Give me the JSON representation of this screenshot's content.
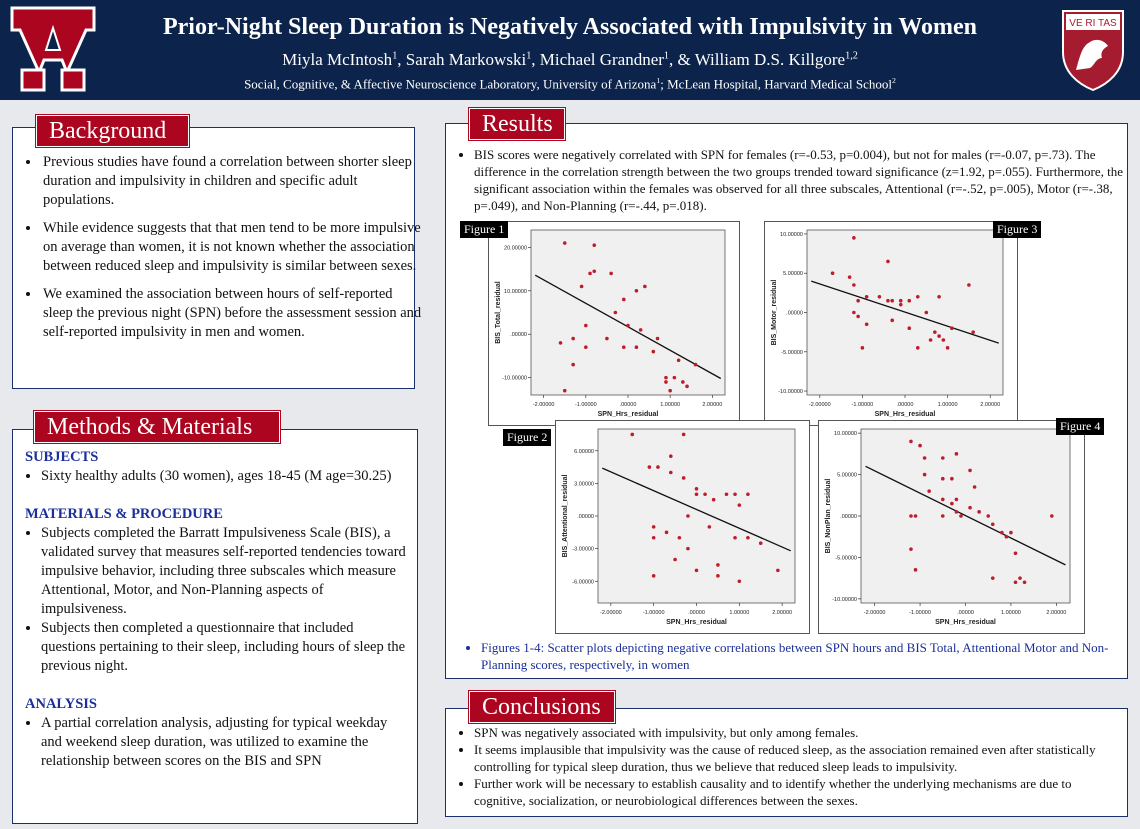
{
  "header": {
    "title": "Prior-Night Sleep Duration is Negatively Associated with Impulsivity in Women",
    "authors": [
      {
        "name": "Miyla McIntosh",
        "sup": "1"
      },
      {
        "name": "Sarah Markowski",
        "sup": "1"
      },
      {
        "name": "Michael Grandner",
        "sup": "1"
      },
      {
        "name": "William D.S. Killgore",
        "sup": "1,2"
      }
    ],
    "affil_1": "Social, Cognitive, & Affective Neuroscience Laboratory, University of Arizona",
    "affil_1_sup": "1",
    "affil_2": "McLean Hospital, Harvard Medical School",
    "affil_2_sup": "2",
    "harvard_shield_text": "VE RI TAS",
    "colors": {
      "navy": "#0c234b",
      "red": "#ab0520"
    }
  },
  "background": {
    "title": "Background",
    "bullets": [
      "Previous studies have found a correlation between shorter sleep duration and impulsivity in children and specific adult populations.",
      "While evidence suggests that that men tend to be more impulsive on average than women, it is not known whether the association between reduced sleep and impulsivity is similar between sexes.",
      "We examined the association between hours of self-reported sleep the previous night (SPN) before the assessment session and self-reported impulsivity in men and women."
    ]
  },
  "methods": {
    "title": "Methods & Materials",
    "subjects_head": "SUBJECTS",
    "subjects": [
      "Sixty healthy adults (30 women), ages 18-45 (M age=30.25)"
    ],
    "materials_head": "MATERIALS & PROCEDURE",
    "materials": [
      "Subjects completed the Barratt Impulsiveness Scale (BIS), a validated survey that measures self-reported tendencies toward impulsive behavior, including three subscales which measure Attentional, Motor, and Non-Planning aspects of impulsiveness.",
      "Subjects then completed a questionnaire that included questions pertaining to their sleep, including hours of sleep the previous night."
    ],
    "analysis_head": "ANALYSIS",
    "analysis": [
      "A partial correlation analysis, adjusting for typical weekday and weekend sleep duration, was utilized to examine the relationship between scores on the BIS and SPN"
    ]
  },
  "results": {
    "title": "Results",
    "bullets": [
      "BIS scores were negatively correlated with SPN for females (r=-0.53, p=0.004), but not for males (r=-0.07, p=.73). The difference in the correlation strength between the two groups trended toward significance (z=1.92, p=.055). Furthermore, the significant association within the females was observed for all three subscales, Attentional (r=-.52, p=.005), Motor (r=-.38, p=.049), and Non-Planning (r=-.44, p=.018)."
    ],
    "caption": "Figures 1-4: Scatter plots depicting negative correlations between SPN hours and BIS Total, Attentional Motor and Non-Planning scores, respectively, in women"
  },
  "conclusions": {
    "title": "Conclusions",
    "bullets": [
      "SPN was negatively associated with impulsivity, but only among females.",
      "It seems implausible that impulsivity was the cause of reduced sleep, as the association remained even after statistically controlling for typical sleep duration, thus we believe that reduced sleep leads to impulsivity.",
      "Further work will be necessary to establish causality and to identify whether the underlying mechanisms are due to cognitive, socialization, or neurobiological differences between the sexes."
    ]
  },
  "chart_data": [
    {
      "label": "Figure 1",
      "type": "scatter",
      "xlabel": "SPN_Hrs_residual",
      "ylabel": "BIS_Total_residual",
      "xlim": [
        -2.3,
        2.3
      ],
      "ylim": [
        -14,
        24
      ],
      "xticks": [
        "-2.00000",
        "-1.00000",
        ".00000",
        "1.00000",
        "2.00000"
      ],
      "xtick_vals": [
        -2,
        -1,
        0,
        1,
        2
      ],
      "yticks": [
        "-10.00000",
        ".00000",
        "10.00000",
        "20.00000"
      ],
      "ytick_vals": [
        -10,
        0,
        10,
        20
      ],
      "fit": {
        "x0": -2.2,
        "y0": 13.6,
        "x1": 2.2,
        "y1": -10.2
      },
      "points": [
        [
          -1.5,
          21
        ],
        [
          -0.8,
          20.5
        ],
        [
          -0.4,
          14
        ],
        [
          -0.8,
          14.5
        ],
        [
          -0.9,
          14
        ],
        [
          -1.1,
          11
        ],
        [
          0.2,
          10
        ],
        [
          0.4,
          11
        ],
        [
          -0.1,
          8
        ],
        [
          -0.3,
          5
        ],
        [
          -1.0,
          2
        ],
        [
          0.0,
          2
        ],
        [
          0.3,
          1
        ],
        [
          -1.3,
          -1
        ],
        [
          -0.5,
          -1
        ],
        [
          -0.1,
          -3
        ],
        [
          0.2,
          -3
        ],
        [
          0.7,
          -1
        ],
        [
          -1.6,
          -2
        ],
        [
          -1.0,
          -3
        ],
        [
          0.6,
          -4
        ],
        [
          1.2,
          -6
        ],
        [
          -1.3,
          -7
        ],
        [
          1.6,
          -7
        ],
        [
          0.9,
          -10
        ],
        [
          1.1,
          -10
        ],
        [
          0.9,
          -11
        ],
        [
          1.3,
          -11
        ],
        [
          -1.5,
          -13
        ],
        [
          1.0,
          -13
        ],
        [
          1.4,
          -12
        ]
      ]
    },
    {
      "label": "Figure 2",
      "type": "scatter",
      "xlabel": "SPN_Hrs_residual",
      "ylabel": "BIS_Attentional_residual",
      "xlim": [
        -2.3,
        2.3
      ],
      "ylim": [
        -8,
        8
      ],
      "xticks": [
        "-2.00000",
        "-1.00000",
        ".00000",
        "1.00000",
        "2.00000"
      ],
      "xtick_vals": [
        -2,
        -1,
        0,
        1,
        2
      ],
      "yticks": [
        "-6.00000",
        "-3.00000",
        ".00000",
        "3.00000",
        "6.00000"
      ],
      "ytick_vals": [
        -6,
        -3,
        0,
        3,
        6
      ],
      "fit": {
        "x0": -2.2,
        "y0": 4.4,
        "x1": 2.2,
        "y1": -3.2
      },
      "points": [
        [
          -1.5,
          7.5
        ],
        [
          -0.3,
          7.5
        ],
        [
          -0.6,
          5.5
        ],
        [
          -1.1,
          4.5
        ],
        [
          -0.9,
          4.5
        ],
        [
          -0.3,
          3.5
        ],
        [
          -0.6,
          4
        ],
        [
          0.0,
          2.5
        ],
        [
          0.0,
          2
        ],
        [
          0.2,
          2
        ],
        [
          0.4,
          1.5
        ],
        [
          0.7,
          2
        ],
        [
          0.9,
          2
        ],
        [
          1.0,
          1
        ],
        [
          1.2,
          2
        ],
        [
          -1.0,
          -1
        ],
        [
          -0.7,
          -1.5
        ],
        [
          -0.4,
          -2
        ],
        [
          -0.2,
          0
        ],
        [
          0.3,
          -1
        ],
        [
          -1.0,
          -2
        ],
        [
          0.9,
          -2
        ],
        [
          1.2,
          -2
        ],
        [
          1.5,
          -2.5
        ],
        [
          -0.5,
          -4
        ],
        [
          -0.2,
          -3
        ],
        [
          0.0,
          -5
        ],
        [
          0.5,
          -4.5
        ],
        [
          0.5,
          -5.5
        ],
        [
          1.0,
          -6
        ],
        [
          -1.0,
          -5.5
        ],
        [
          1.9,
          -5
        ]
      ]
    },
    {
      "label": "Figure 3",
      "type": "scatter",
      "xlabel": "SPN_Hrs_residual",
      "ylabel": "BIS_Motor_residual",
      "xlim": [
        -2.3,
        2.3
      ],
      "ylim": [
        -10.5,
        10.5
      ],
      "xticks": [
        "-2.00000",
        "-1.00000",
        ".00000",
        "1.00000",
        "2.00000"
      ],
      "xtick_vals": [
        -2,
        -1,
        0,
        1,
        2
      ],
      "yticks": [
        "-10.00000",
        "-5.00000",
        ".00000",
        "5.00000",
        "10.00000"
      ],
      "ytick_vals": [
        -10,
        -5,
        0,
        5,
        10
      ],
      "fit": {
        "x0": -2.2,
        "y0": 4.0,
        "x1": 2.2,
        "y1": -3.9
      },
      "points": [
        [
          -1.2,
          9.5
        ],
        [
          -0.4,
          6.5
        ],
        [
          -1.2,
          3.5
        ],
        [
          -1.1,
          1.5
        ],
        [
          -0.9,
          2
        ],
        [
          -1.7,
          5
        ],
        [
          -1.3,
          4.5
        ],
        [
          -0.6,
          2
        ],
        [
          -0.4,
          1.5
        ],
        [
          -0.3,
          1.5
        ],
        [
          -0.1,
          1.5
        ],
        [
          0.1,
          1.5
        ],
        [
          0.3,
          2
        ],
        [
          -0.1,
          1
        ],
        [
          0.5,
          0
        ],
        [
          0.8,
          2
        ],
        [
          1.1,
          -2
        ],
        [
          1.6,
          -2.5
        ],
        [
          -0.9,
          -1.5
        ],
        [
          -0.3,
          -1
        ],
        [
          0.1,
          -2
        ],
        [
          0.3,
          -4.5
        ],
        [
          0.7,
          -2.5
        ],
        [
          0.8,
          -3
        ],
        [
          1.0,
          -4.5
        ],
        [
          -1.0,
          -4.5
        ],
        [
          -1.2,
          0
        ],
        [
          -1.1,
          -0.5
        ],
        [
          0.6,
          -3.5
        ],
        [
          0.9,
          -3.5
        ],
        [
          1.5,
          3.5
        ]
      ]
    },
    {
      "label": "Figure 4",
      "type": "scatter",
      "xlabel": "SPN_Hrs_residual",
      "ylabel": "BIS_NonPlan_residual",
      "xlim": [
        -2.3,
        2.3
      ],
      "ylim": [
        -10.5,
        10.5
      ],
      "xticks": [
        "-2.00000",
        "-1.00000",
        ".00000",
        "1.00000",
        "2.00000"
      ],
      "xtick_vals": [
        -2,
        -1,
        0,
        1,
        2
      ],
      "yticks": [
        "-10.00000",
        "-5.00000",
        ".00000",
        "5.00000",
        "10.00000"
      ],
      "ytick_vals": [
        -10,
        -5,
        0,
        5,
        10
      ],
      "fit": {
        "x0": -2.2,
        "y0": 6.0,
        "x1": 2.2,
        "y1": -5.9
      },
      "points": [
        [
          -1.2,
          9
        ],
        [
          -1.0,
          8.5
        ],
        [
          -0.9,
          7
        ],
        [
          -0.5,
          7
        ],
        [
          -0.2,
          7.5
        ],
        [
          0.1,
          5.5
        ],
        [
          -0.9,
          5
        ],
        [
          -0.5,
          4.5
        ],
        [
          -0.3,
          4.5
        ],
        [
          -0.8,
          3
        ],
        [
          -0.5,
          2
        ],
        [
          -0.2,
          2
        ],
        [
          0.2,
          3.5
        ],
        [
          -0.3,
          1.5
        ],
        [
          -0.5,
          0
        ],
        [
          -0.2,
          0.5
        ],
        [
          -0.1,
          0
        ],
        [
          0.1,
          1
        ],
        [
          0.3,
          0.5
        ],
        [
          0.5,
          0
        ],
        [
          -1.2,
          0
        ],
        [
          -1.1,
          0
        ],
        [
          0.6,
          -1
        ],
        [
          0.8,
          -2
        ],
        [
          1.0,
          -2
        ],
        [
          0.9,
          -2.5
        ],
        [
          -1.2,
          -4
        ],
        [
          -1.1,
          -6.5
        ],
        [
          0.6,
          -7.5
        ],
        [
          1.1,
          -4.5
        ],
        [
          1.1,
          -8
        ],
        [
          1.2,
          -7.5
        ],
        [
          1.3,
          -8
        ],
        [
          1.9,
          0
        ]
      ]
    }
  ]
}
